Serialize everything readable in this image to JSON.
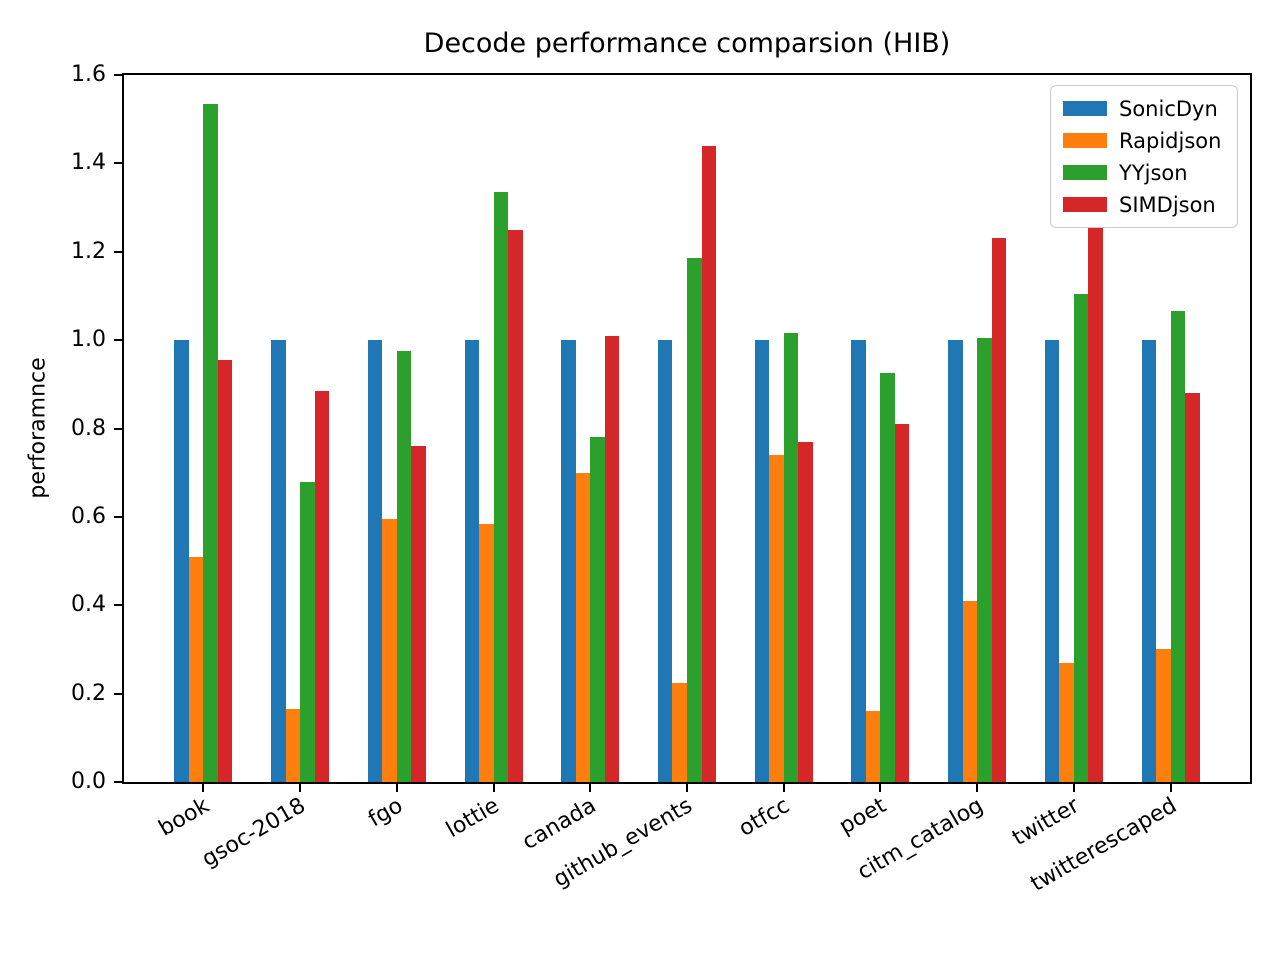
{
  "chart_data": {
    "type": "bar",
    "title": "Decode performance comparsion (HIB)",
    "xlabel": "",
    "ylabel": "perforamnce",
    "categories": [
      "book",
      "gsoc-2018",
      "fgo",
      "lottie",
      "canada",
      "github_events",
      "otfcc",
      "poet",
      "citm_catalog",
      "twitter",
      "twitterescaped"
    ],
    "series": [
      {
        "name": "SonicDyn",
        "color": "#1f77b4",
        "values": [
          1.0,
          1.0,
          1.0,
          1.0,
          1.0,
          1.0,
          1.0,
          1.0,
          1.0,
          1.0,
          1.0
        ]
      },
      {
        "name": "Rapidjson",
        "color": "#ff7f0e",
        "values": [
          0.51,
          0.165,
          0.595,
          0.585,
          0.7,
          0.225,
          0.74,
          0.16,
          0.41,
          0.27,
          0.3
        ]
      },
      {
        "name": "YYjson",
        "color": "#2ca02c",
        "values": [
          1.535,
          0.68,
          0.975,
          1.335,
          0.78,
          1.185,
          1.015,
          0.925,
          1.005,
          1.105,
          1.065
        ]
      },
      {
        "name": "SIMDjson",
        "color": "#d62728",
        "values": [
          0.955,
          0.885,
          0.76,
          1.25,
          1.01,
          1.44,
          0.77,
          0.81,
          1.23,
          1.285,
          0.88
        ]
      }
    ],
    "ylim": [
      0.0,
      1.6
    ],
    "ytick_step": 0.2,
    "ytick_labels": [
      "0.0",
      "0.2",
      "0.4",
      "0.6",
      "0.8",
      "1.0",
      "1.2",
      "1.4",
      "1.6"
    ],
    "legend_position": "upper right",
    "grid": false,
    "xticklabel_rotation_deg": 30
  }
}
